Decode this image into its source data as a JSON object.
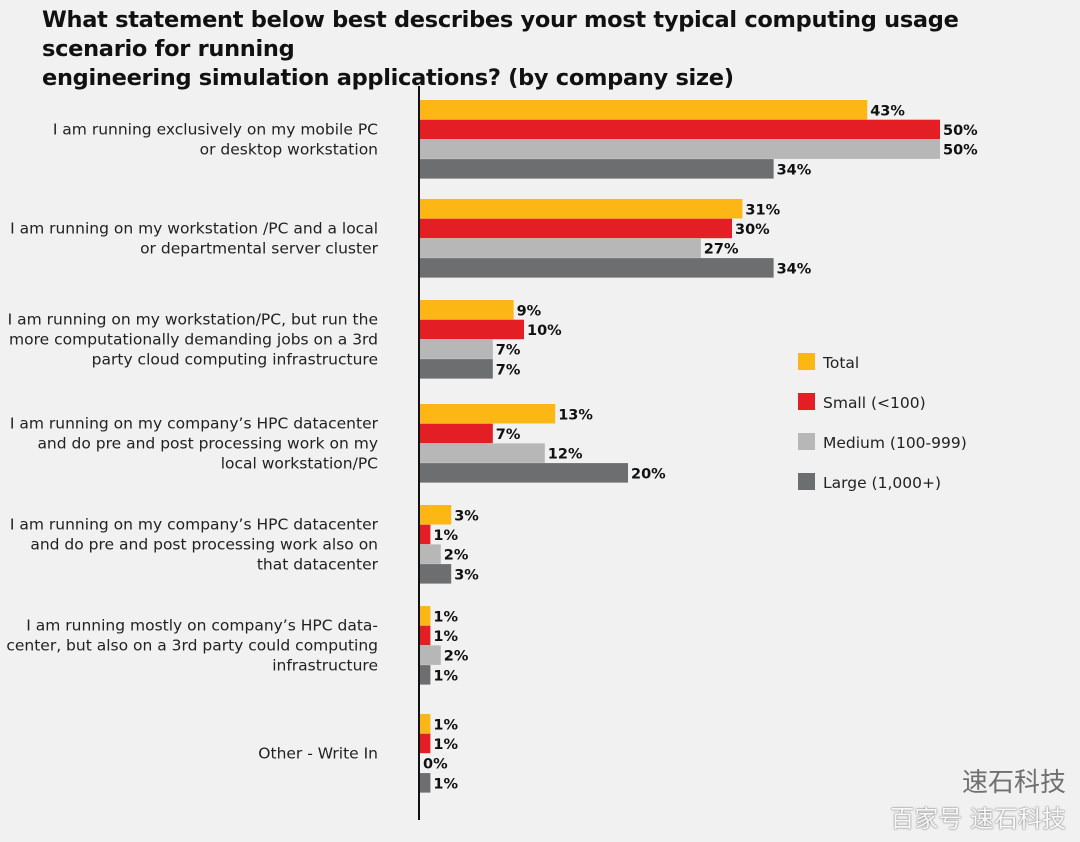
{
  "title_lines": [
    "What statement below best describes your most typical computing usage scenario for running",
    "engineering simulation applications? (by company size)"
  ],
  "watermark": {
    "line1": "速石科技",
    "line2": "百家号 速石科技"
  },
  "chart_data": {
    "type": "bar",
    "orientation": "horizontal",
    "categories": [
      [
        "I am running exclusively on my mobile PC",
        "or desktop workstation"
      ],
      [
        "I am running on my workstation /PC and a local",
        "or departmental server cluster"
      ],
      [
        "I am running on my workstation/PC, but run the",
        "more computationally demanding jobs on a 3rd",
        "party cloud computing infrastructure"
      ],
      [
        "I am running  on my company’s HPC datacenter",
        "and do pre and post processing work on my",
        "local workstation/PC"
      ],
      [
        "I am running  on my company’s HPC datacenter",
        "and do pre and post processing work also on",
        "that datacenter"
      ],
      [
        "I am running mostly on company’s HPC data-",
        "center, but also on a 3rd party could computing",
        "infrastructure"
      ],
      [
        "Other - Write In"
      ]
    ],
    "series": [
      {
        "name": "Total",
        "color": "#fdb714",
        "values": [
          43,
          31,
          9,
          13,
          3,
          1,
          1
        ]
      },
      {
        "name": "Small (<100)",
        "color": "#e31e24",
        "values": [
          50,
          30,
          10,
          7,
          1,
          1,
          1
        ]
      },
      {
        "name": "Medium (100-999)",
        "color": "#b7b7b7",
        "values": [
          50,
          27,
          7,
          12,
          2,
          2,
          0
        ]
      },
      {
        "name": "Large (1,000+)",
        "color": "#6d6e70",
        "values": [
          34,
          34,
          7,
          20,
          3,
          1,
          1
        ]
      }
    ],
    "value_suffix": "%",
    "xlim": [
      0,
      50
    ],
    "legend_position": "right",
    "grid": false
  }
}
